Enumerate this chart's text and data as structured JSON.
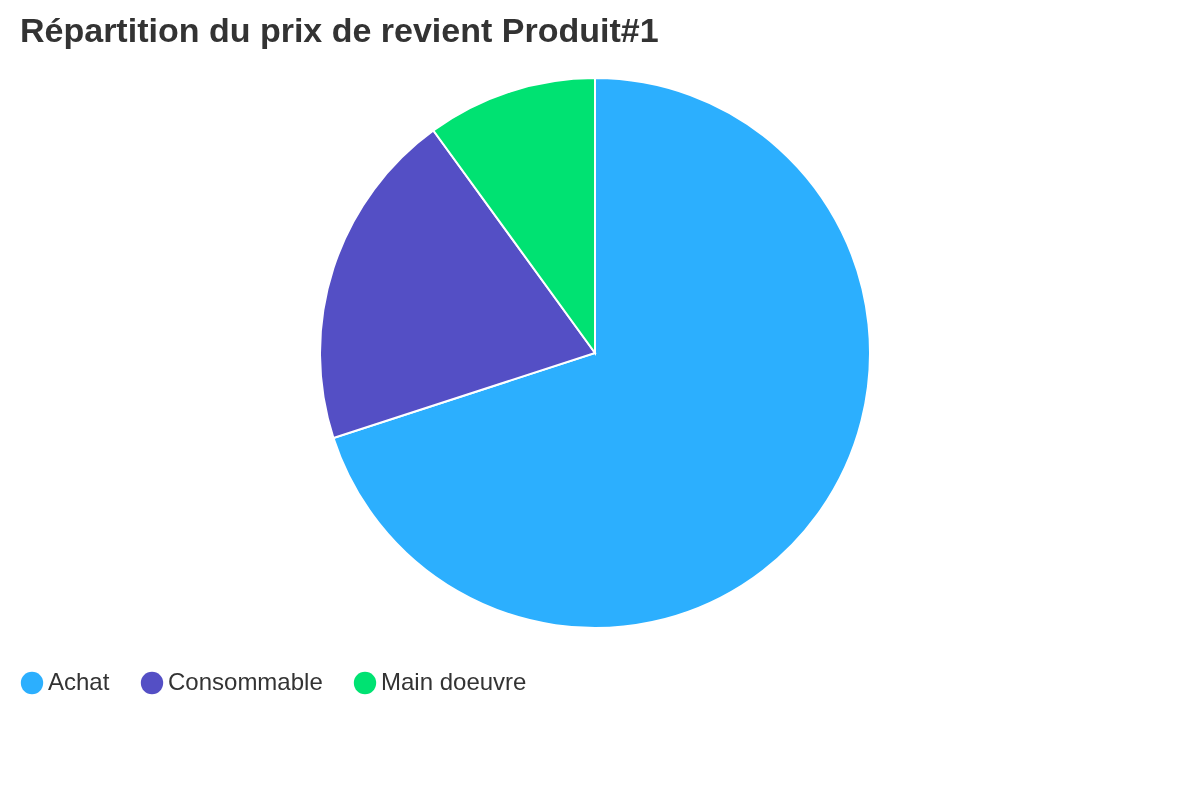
{
  "chart_data": {
    "type": "pie",
    "title": "Répartition du prix de revient Produit#1",
    "categories": [
      "Achat",
      "Consommable",
      "Main doeuvre"
    ],
    "values": [
      70,
      20,
      10
    ],
    "colors": [
      "#2caffe",
      "#544fc5",
      "#00e272"
    ],
    "legend": "bottom"
  }
}
